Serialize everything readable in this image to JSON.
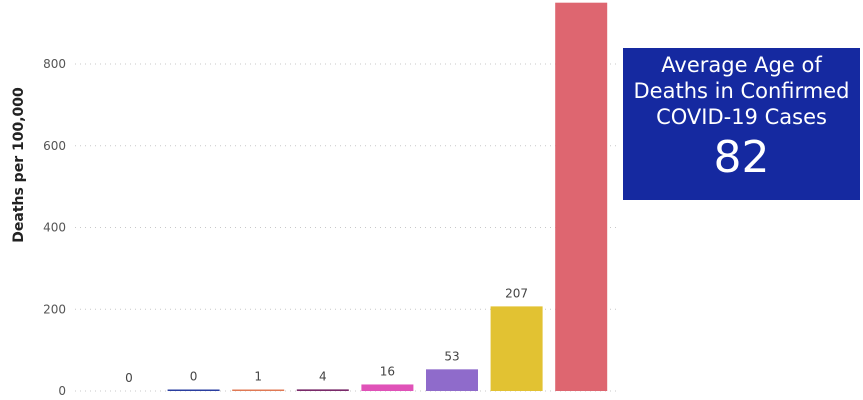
{
  "chart_data": {
    "type": "bar",
    "title": "",
    "xlabel": "",
    "ylabel": "Deaths per 100,000",
    "ylim": [
      0,
      950
    ],
    "yticks": [
      0,
      200,
      400,
      600,
      800
    ],
    "grid": true,
    "categories": [
      "",
      "",
      "",
      "",
      "",
      "",
      "",
      ""
    ],
    "values": [
      0,
      0.4,
      1,
      4,
      16,
      53,
      207,
      950
    ],
    "data_labels": [
      "0",
      "0",
      "1",
      "4",
      "16",
      "53",
      "207",
      ""
    ],
    "colors": [
      "#1f5aa8",
      "#2a3ea0",
      "#e07a55",
      "#7a2a6a",
      "#e052b8",
      "#8f6bcb",
      "#e2c232",
      "#de6670"
    ]
  },
  "kpi_card": {
    "title": "Average Age of\nDeaths in Confirmed\nCOVID-19 Cases",
    "value": "82",
    "background": "#1529a0"
  }
}
